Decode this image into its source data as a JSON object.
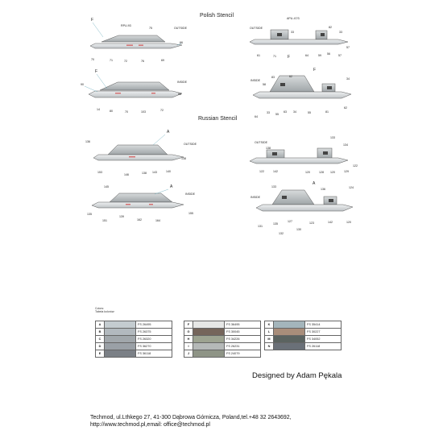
{
  "titles": {
    "polish": "Polish Stencil",
    "russian": "Russian Stencil"
  },
  "polish_views": {
    "v1": {
      "title": "RPU-93",
      "side": "OUTSIDE",
      "ref": "F",
      "labels": [
        "66",
        "69",
        "70",
        "71",
        "72",
        "73",
        "74",
        "75",
        "76"
      ]
    },
    "v2": {
      "title": "APU-47/3",
      "side": "OUTSIDE",
      "labels": [
        "61",
        "82",
        "33",
        "59",
        "57",
        "33",
        "56",
        "64",
        "57",
        "71",
        "F"
      ]
    },
    "v3": {
      "side": "INSIDE",
      "ref": "F",
      "labels": [
        "90",
        "14",
        "80",
        "82",
        "70",
        "103",
        "72",
        "66"
      ]
    },
    "v4": {
      "side": "INSIDE",
      "ref": "F",
      "labels": [
        "83",
        "34",
        "62",
        "58",
        "34",
        "33",
        "55",
        "63",
        "55",
        "81",
        "62",
        "64"
      ]
    }
  },
  "russian_views": {
    "v5": {
      "side": "OUTSIDE",
      "ref": "A",
      "labels": [
        "136",
        "153",
        "146",
        "138",
        "143",
        "140",
        "138"
      ]
    },
    "v6": {
      "side": "OUTSIDE",
      "labels": [
        "138",
        "133",
        "134",
        "122",
        "142",
        "120",
        "128",
        "120",
        "129",
        "122"
      ]
    },
    "v7": {
      "side": "INSIDE",
      "ref": "A",
      "labels": [
        "145",
        "135",
        "151",
        "139",
        "162",
        "164",
        "155"
      ]
    },
    "v8": {
      "side": "INSIDE",
      "ref": "A",
      "labels": [
        "133",
        "136",
        "124",
        "131",
        "127",
        "123",
        "142",
        "120",
        "130",
        "135",
        "132"
      ]
    }
  },
  "legend": {
    "heading": [
      "Colors:",
      "Tabela kolorów:"
    ],
    "columns": [
      [
        {
          "letter": "A",
          "code": "FS 26495",
          "color": "#c4ccd0"
        },
        {
          "letter": "B",
          "code": "FS 26375",
          "color": "#b2b9be"
        },
        {
          "letter": "C",
          "code": "FS 26320",
          "color": "#a1a7ab"
        },
        {
          "letter": "D",
          "code": "FS 36270",
          "color": "#9aa0a6"
        },
        {
          "letter": "E",
          "code": "FS 36118",
          "color": "#7b8086"
        }
      ],
      [
        {
          "letter": "F",
          "code": "FS 36495",
          "color": "#e6e7e6"
        },
        {
          "letter": "G",
          "code": "FS 30045",
          "color": "#75655b"
        },
        {
          "letter": "H",
          "code": "FS 34226",
          "color": "#9da391"
        },
        {
          "letter": "I",
          "code": "FS 26231",
          "color": "#b5b9b8"
        },
        {
          "letter": "J",
          "code": "FS 24079",
          "color": "#8e9486"
        }
      ],
      [
        {
          "letter": "K",
          "code": "FS 35414",
          "color": "#a4b5bb"
        },
        {
          "letter": "L",
          "code": "FS 30227",
          "color": "#a88d7a"
        },
        {
          "letter": "M",
          "code": "FS 34052",
          "color": "#5b6360"
        },
        {
          "letter": "N",
          "code": "FS 26118",
          "color": "#6a7078"
        }
      ]
    ]
  },
  "designer": "Designed by Adam Pękala",
  "footer": {
    "line1": "Techmod, ul.Lthkego 27, 41-300 Dąbrowa Górnicza, Poland,tel.+48 32 2643692,",
    "line2": "http://www.techmod.pl,email: office@techmod.pl"
  }
}
